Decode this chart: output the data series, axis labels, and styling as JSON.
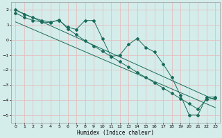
{
  "title": "",
  "xlabel": "Humidex (Indice chaleur)",
  "ylabel": "",
  "bg_color": "#d4ecea",
  "line_color": "#1a6b5a",
  "xlim": [
    -0.5,
    23.5
  ],
  "ylim": [
    -5.5,
    2.5
  ],
  "xticks": [
    0,
    1,
    2,
    3,
    4,
    5,
    6,
    7,
    8,
    9,
    10,
    11,
    12,
    13,
    14,
    15,
    16,
    17,
    18,
    19,
    20,
    21,
    22,
    23
  ],
  "yticks": [
    -5,
    -4,
    -3,
    -2,
    -1,
    0,
    1,
    2
  ],
  "line1_x": [
    0,
    1,
    2,
    3,
    4,
    5,
    6,
    7,
    8,
    9,
    10,
    11,
    12,
    13,
    14,
    15,
    16,
    17,
    18,
    19,
    20,
    21,
    22,
    23
  ],
  "line1_y": [
    2.0,
    1.7,
    1.5,
    1.3,
    1.2,
    1.3,
    0.85,
    0.7,
    1.3,
    1.3,
    0.1,
    -1.1,
    -1.0,
    -0.3,
    0.1,
    -0.5,
    -0.8,
    -1.6,
    -2.5,
    -3.7,
    -5.0,
    -5.0,
    -3.8,
    -3.8
  ],
  "line2_x": [
    0,
    1,
    2,
    3,
    4,
    5,
    6,
    7,
    8,
    9,
    10,
    11,
    12,
    13,
    14,
    15,
    16,
    17,
    18,
    19,
    20,
    21,
    22,
    23
  ],
  "line2_y": [
    1.8,
    1.5,
    1.3,
    1.2,
    1.15,
    1.35,
    0.75,
    0.35,
    -0.05,
    -0.4,
    -0.75,
    -1.1,
    -1.45,
    -1.8,
    -2.15,
    -2.5,
    -2.85,
    -3.2,
    -3.55,
    -3.9,
    -4.25,
    -4.6,
    -3.95,
    -3.85
  ],
  "line3_x": [
    0,
    23
  ],
  "line3_y": [
    2.0,
    -4.0
  ],
  "line4_x": [
    0,
    23
  ],
  "line4_y": [
    1.2,
    -4.5
  ]
}
